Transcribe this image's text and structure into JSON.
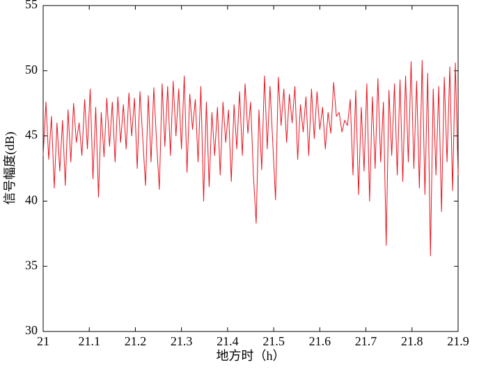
{
  "chart_data": {
    "type": "line",
    "xlabel": "地方时（h）",
    "ylabel": "信号幅度(dB)",
    "x": [
      21,
      21.006,
      21.012,
      21.018,
      21.024,
      21.03,
      21.036,
      21.042,
      21.048,
      21.054,
      21.06,
      21.066,
      21.072,
      21.078,
      21.084,
      21.09,
      21.096,
      21.102,
      21.108,
      21.114,
      21.12,
      21.126,
      21.132,
      21.138,
      21.144,
      21.15,
      21.156,
      21.162,
      21.168,
      21.174,
      21.18,
      21.186,
      21.192,
      21.198,
      21.204,
      21.21,
      21.216,
      21.222,
      21.228,
      21.234,
      21.24,
      21.246,
      21.252,
      21.258,
      21.264,
      21.27,
      21.276,
      21.282,
      21.288,
      21.294,
      21.3,
      21.306,
      21.312,
      21.318,
      21.324,
      21.33,
      21.336,
      21.342,
      21.348,
      21.354,
      21.36,
      21.366,
      21.372,
      21.378,
      21.384,
      21.39,
      21.396,
      21.402,
      21.408,
      21.414,
      21.42,
      21.426,
      21.432,
      21.438,
      21.444,
      21.45,
      21.456,
      21.462,
      21.468,
      21.474,
      21.48,
      21.486,
      21.492,
      21.498,
      21.504,
      21.51,
      21.516,
      21.522,
      21.528,
      21.534,
      21.54,
      21.546,
      21.552,
      21.558,
      21.564,
      21.57,
      21.576,
      21.582,
      21.588,
      21.594,
      21.6,
      21.606,
      21.612,
      21.618,
      21.624,
      21.63,
      21.636,
      21.642,
      21.648,
      21.654,
      21.66,
      21.666,
      21.672,
      21.678,
      21.684,
      21.69,
      21.696,
      21.702,
      21.708,
      21.714,
      21.72,
      21.726,
      21.732,
      21.738,
      21.744,
      21.75,
      21.756,
      21.762,
      21.768,
      21.774,
      21.78,
      21.786,
      21.792,
      21.798,
      21.804,
      21.81,
      21.816,
      21.822,
      21.828,
      21.834,
      21.84,
      21.846,
      21.852,
      21.858,
      21.864,
      21.87,
      21.876,
      21.882,
      21.888,
      21.894,
      21.9
    ],
    "series": [
      {
        "color": "#e8121d",
        "values": [
          43.5,
          47.6,
          43.2,
          46.5,
          41.0,
          46.0,
          42.3,
          46.2,
          41.2,
          47.0,
          43.0,
          47.5,
          44.5,
          46.0,
          43.5,
          47.8,
          44.0,
          48.6,
          41.7,
          47.2,
          40.3,
          46.8,
          43.4,
          47.9,
          44.2,
          47.6,
          43.0,
          48.0,
          44.5,
          47.4,
          44.0,
          48.3,
          45.0,
          47.9,
          42.5,
          48.4,
          44.8,
          41.2,
          48.1,
          43.0,
          48.7,
          44.5,
          40.9,
          49.0,
          44.2,
          48.8,
          43.5,
          49.2,
          45.0,
          48.6,
          44.0,
          49.6,
          42.2,
          48.2,
          45.5,
          47.8,
          43.0,
          48.8,
          40.0,
          47.6,
          41.1,
          46.8,
          43.5,
          47.2,
          42.0,
          47.6,
          44.5,
          47.0,
          41.5,
          47.4,
          44.0,
          48.4,
          43.5,
          49.0,
          45.2,
          47.6,
          42.0,
          38.3,
          47.0,
          42.4,
          49.6,
          44.0,
          48.8,
          44.5,
          40.1,
          49.5,
          45.8,
          48.6,
          44.5,
          48.2,
          46.0,
          48.8,
          43.2,
          47.4,
          45.3,
          48.0,
          43.5,
          48.6,
          44.8,
          48.4,
          45.5,
          47.2,
          44.0,
          46.8,
          45.2,
          49.1,
          46.5,
          46.8,
          45.3,
          46.2,
          45.8,
          47.8,
          42.0,
          48.5,
          40.5,
          47.2,
          42.3,
          49.0,
          40.0,
          48.0,
          42.5,
          49.4,
          43.0,
          47.6,
          36.6,
          48.5,
          43.5,
          49.0,
          42.0,
          49.3,
          41.5,
          49.6,
          43.0,
          50.7,
          42.5,
          49.2,
          41.0,
          50.8,
          40.5,
          49.8,
          35.8,
          48.6,
          42.0,
          48.8,
          39.2,
          49.5,
          43.0,
          50.3,
          40.8,
          50.6,
          42.0
        ]
      }
    ],
    "xlim": [
      21,
      21.9
    ],
    "xticks": [
      21,
      21.1,
      21.2,
      21.3,
      21.4,
      21.5,
      21.6,
      21.7,
      21.8,
      21.9
    ],
    "ylim": [
      30,
      55
    ],
    "yticks": [
      30,
      35,
      40,
      45,
      50,
      55
    ],
    "grid": false
  }
}
